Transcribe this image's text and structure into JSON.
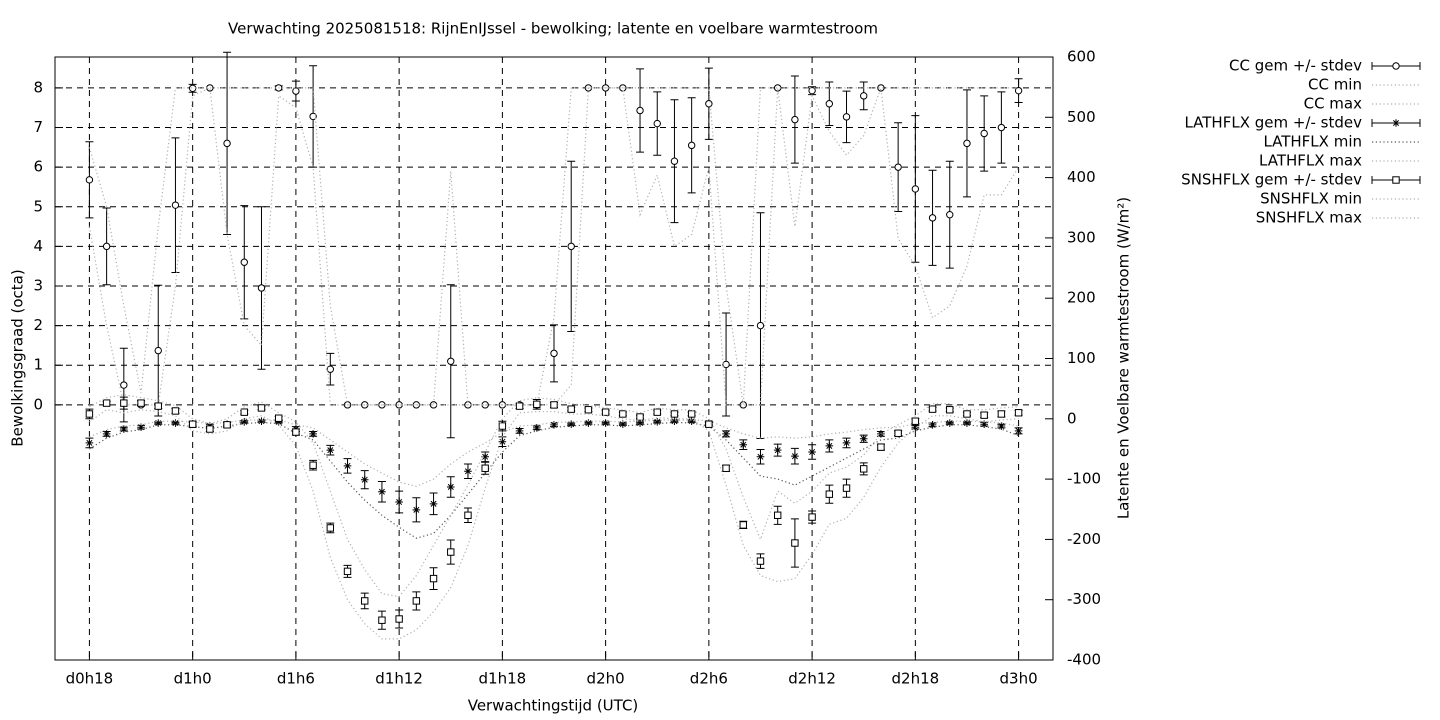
{
  "chart_data": {
    "type": "errorbar",
    "title": "Verwachting 2025081518: RijnEnIJssel - bewolking; latente en voelbare warmtestroom",
    "x_label": "Verwachtingstijd (UTC)",
    "y_label": "Bewolkingsgraad (octa)",
    "y2_label": "Latente en Voelbare warmtestroom (W/m²)",
    "x": [
      18,
      19,
      20,
      21,
      22,
      23,
      24,
      25,
      26,
      27,
      28,
      29,
      30,
      31,
      32,
      33,
      34,
      35,
      36,
      37,
      38,
      39,
      40,
      41,
      42,
      43,
      44,
      45,
      46,
      47,
      48,
      49,
      50,
      51,
      52,
      53,
      54,
      55,
      56,
      57,
      58,
      59,
      60,
      61,
      62,
      63,
      64,
      65,
      66,
      67,
      68,
      69,
      70,
      71,
      72
    ],
    "xlim": [
      16,
      74
    ],
    "xticks": [
      {
        "value": 18,
        "label": "d0h18"
      },
      {
        "value": 24,
        "label": "d1h0"
      },
      {
        "value": 30,
        "label": "d1h6"
      },
      {
        "value": 36,
        "label": "d1h12"
      },
      {
        "value": 42,
        "label": "d1h18"
      },
      {
        "value": 48,
        "label": "d2h0"
      },
      {
        "value": 54,
        "label": "d2h6"
      },
      {
        "value": 60,
        "label": "d2h12"
      },
      {
        "value": 66,
        "label": "d2h18"
      },
      {
        "value": 72,
        "label": "d3h0"
      }
    ],
    "ylim": [
      -6.44,
      8.78
    ],
    "yticks": [
      0,
      1,
      2,
      3,
      4,
      5,
      6,
      7,
      8
    ],
    "y2lim": [
      -400,
      600
    ],
    "y2ticks": [
      -400,
      -300,
      -200,
      -100,
      0,
      100,
      200,
      300,
      400,
      500,
      600
    ],
    "grid": true,
    "legend": "right",
    "series": [
      {
        "name": "CC gem +/- stdev",
        "style": "errorbars",
        "marker": "circle",
        "color": "#000000",
        "values": [
          5.68,
          4.0,
          0.5,
          0,
          1.37,
          5.04,
          7.99,
          8.0,
          6.6,
          3.6,
          2.95,
          8.0,
          7.92,
          7.28,
          0.9,
          0,
          0,
          0,
          0,
          0,
          0,
          1.1,
          0,
          0,
          0,
          0,
          0,
          1.3,
          4.0,
          8.0,
          8.0,
          8.0,
          7.43,
          7.1,
          6.15,
          6.55,
          7.6,
          1.02,
          0,
          2.0,
          8.0,
          7.2,
          7.93,
          7.6,
          7.27,
          7.8,
          8.0,
          6.0,
          5.45,
          4.72,
          4.8,
          6.6,
          6.85,
          7.0,
          7.93
        ],
        "errors": [
          0.96,
          0.97,
          0.93,
          0,
          1.65,
          1.7,
          0.1,
          0,
          2.3,
          1.43,
          2.05,
          0.05,
          0.25,
          1.28,
          0.4,
          0,
          0,
          0,
          0,
          0,
          0,
          1.93,
          0,
          0,
          0,
          0,
          0,
          0.72,
          2.15,
          0,
          0,
          0,
          1.05,
          0.8,
          1.55,
          1.2,
          0.9,
          1.3,
          0,
          2.85,
          0,
          1.1,
          0.1,
          0.55,
          0.65,
          0.35,
          0,
          1.12,
          1.85,
          1.2,
          1.35,
          1.35,
          0.95,
          0.9,
          0.3
        ]
      },
      {
        "name": "CC min",
        "style": "dotted",
        "color": "#b0b0b0",
        "values": [
          4.5,
          2.0,
          0,
          0,
          0,
          3.0,
          7.8,
          8.0,
          4.3,
          2.0,
          1.5,
          7.8,
          7.5,
          6.0,
          0,
          0,
          0,
          0,
          0,
          0,
          0,
          0,
          0,
          0,
          0,
          0,
          0,
          0,
          0.5,
          8.0,
          8.0,
          8.0,
          4.8,
          5.8,
          4.0,
          4.3,
          6.0,
          0,
          0,
          0,
          8.0,
          4.5,
          7.8,
          6.9,
          6.3,
          6.8,
          8.0,
          4.2,
          3.5,
          2.2,
          2.5,
          3.5,
          5.3,
          5.3,
          6.0
        ]
      },
      {
        "name": "CC max",
        "style": "dotted",
        "color": "#b0b0b0",
        "values": [
          6.5,
          5.0,
          2.5,
          0.3,
          4.5,
          8.0,
          8.0,
          8.0,
          8.0,
          8.0,
          8.0,
          8.0,
          8.0,
          8.0,
          2.5,
          0,
          0,
          0,
          0,
          0,
          0,
          5.9,
          0,
          0,
          0,
          0,
          0,
          2.2,
          8.0,
          8.0,
          8.0,
          8.0,
          8.0,
          8.0,
          8.0,
          8.0,
          8.0,
          3.0,
          0,
          8.0,
          8.0,
          8.0,
          8.0,
          8.0,
          8.0,
          8.0,
          8.0,
          8.0,
          8.0,
          8.0,
          8.0,
          8.0,
          8.0,
          8.0,
          8.0
        ]
      },
      {
        "name": "LATHFLX gem +/- stdev",
        "style": "errorbars",
        "marker": "asterisk",
        "color": "#000000",
        "axis": "y2",
        "values": [
          -40,
          -25,
          -17,
          -14,
          -7,
          -7,
          -9,
          -12,
          -9,
          -5,
          -4,
          -5,
          -17,
          -25,
          -52,
          -78,
          -101,
          -121,
          -138,
          -151,
          -141,
          -113,
          -87,
          -63,
          -38,
          -20,
          -15,
          -10,
          -9,
          -7,
          -7,
          -9,
          -7,
          -5,
          -4,
          -4,
          -7,
          -25,
          -43,
          -63,
          -52,
          -62,
          -55,
          -45,
          -40,
          -33,
          -25,
          -24,
          -14,
          -10,
          -7,
          -7,
          -9,
          -12,
          -20
        ],
        "errors": [
          8,
          4,
          3,
          3,
          2,
          2,
          3,
          3,
          3,
          2,
          2,
          2,
          4,
          4,
          8,
          12,
          15,
          17,
          18,
          20,
          18,
          17,
          12,
          8,
          8,
          4,
          3,
          3,
          2,
          2,
          2,
          2,
          2,
          2,
          2,
          2,
          3,
          5,
          8,
          12,
          10,
          13,
          12,
          10,
          8,
          6,
          4,
          4,
          3,
          3,
          2,
          2,
          3,
          3,
          5
        ]
      },
      {
        "name": "LATHFLX min",
        "style": "dotted",
        "color": "#555555",
        "axis": "y2",
        "values": [
          -50,
          -32,
          -22,
          -18,
          -10,
          -10,
          -13,
          -16,
          -12,
          -8,
          -6,
          -8,
          -24,
          -35,
          -70,
          -105,
          -135,
          -160,
          -180,
          -198,
          -190,
          -160,
          -125,
          -90,
          -55,
          -28,
          -20,
          -14,
          -12,
          -10,
          -10,
          -12,
          -10,
          -8,
          -6,
          -7,
          -12,
          -35,
          -65,
          -95,
          -100,
          -110,
          -95,
          -80,
          -65,
          -50,
          -35,
          -32,
          -20,
          -14,
          -10,
          -10,
          -13,
          -17,
          -28
        ]
      },
      {
        "name": "LATHFLX max",
        "style": "dotted",
        "color": "#b0b0b0",
        "axis": "y2",
        "values": [
          -30,
          -18,
          -12,
          -10,
          -4,
          -4,
          -5,
          -8,
          -6,
          -2,
          -2,
          -2,
          -10,
          -15,
          -35,
          -55,
          -75,
          -90,
          -105,
          -112,
          -100,
          -75,
          -55,
          -40,
          -22,
          -12,
          -10,
          -6,
          -5,
          -4,
          -4,
          -5,
          -4,
          -2,
          -2,
          -2,
          -3,
          -15,
          -25,
          -32,
          -30,
          -32,
          -30,
          -25,
          -22,
          -18,
          -15,
          -14,
          -8,
          -6,
          -4,
          -4,
          -5,
          -7,
          -12
        ]
      },
      {
        "name": "SNSHFLX gem +/- stdev",
        "style": "errorbars",
        "marker": "square",
        "color": "#000000",
        "axis": "y2",
        "values": [
          8,
          26,
          26,
          26,
          21,
          13,
          -9,
          -17,
          -10,
          11,
          18,
          1,
          -22,
          -77,
          -181,
          -253,
          -302,
          -334,
          -332,
          -302,
          -265,
          -221,
          -160,
          -82,
          -12,
          21,
          24,
          23,
          16,
          15,
          11,
          8,
          3,
          11,
          8,
          8,
          -9,
          -82,
          -176,
          -236,
          -160,
          -206,
          -163,
          -125,
          -115,
          -83,
          -47,
          -24,
          -4,
          16,
          15,
          8,
          6,
          8,
          10
        ],
        "errors": [
          8,
          3,
          10,
          4,
          4,
          4,
          5,
          4,
          4,
          3,
          3,
          3,
          5,
          8,
          8,
          10,
          13,
          15,
          15,
          15,
          18,
          20,
          12,
          10,
          8,
          4,
          8,
          4,
          3,
          3,
          3,
          3,
          3,
          3,
          3,
          3,
          3,
          5,
          6,
          12,
          15,
          40,
          10,
          15,
          15,
          10,
          5,
          4,
          4,
          3,
          3,
          3,
          4,
          5,
          4
        ]
      },
      {
        "name": "SNSHFLX min",
        "style": "dotted",
        "color": "#b0b0b0",
        "axis": "y2",
        "values": [
          -5,
          15,
          10,
          15,
          12,
          5,
          -20,
          -25,
          -20,
          0,
          5,
          -10,
          -45,
          -120,
          -230,
          -300,
          -340,
          -365,
          -365,
          -350,
          -320,
          -280,
          -210,
          -115,
          -30,
          10,
          12,
          12,
          8,
          8,
          5,
          0,
          -3,
          2,
          0,
          0,
          -20,
          -110,
          -210,
          -260,
          -270,
          -265,
          -225,
          -175,
          -165,
          -130,
          -80,
          -40,
          -15,
          5,
          5,
          0,
          -5,
          -2,
          0
        ]
      },
      {
        "name": "SNSHFLX max",
        "style": "dotted",
        "color": "#b0b0b0",
        "axis": "y2",
        "values": [
          20,
          35,
          40,
          35,
          30,
          22,
          0,
          -8,
          0,
          20,
          28,
          10,
          -5,
          -40,
          -120,
          -200,
          -250,
          -290,
          -295,
          -260,
          -210,
          -160,
          -110,
          -55,
          0,
          30,
          35,
          32,
          25,
          22,
          18,
          15,
          10,
          18,
          15,
          15,
          0,
          -50,
          -130,
          -200,
          -120,
          -140,
          -120,
          -90,
          -80,
          -60,
          -25,
          -10,
          5,
          25,
          25,
          15,
          15,
          18,
          20
        ]
      }
    ]
  }
}
